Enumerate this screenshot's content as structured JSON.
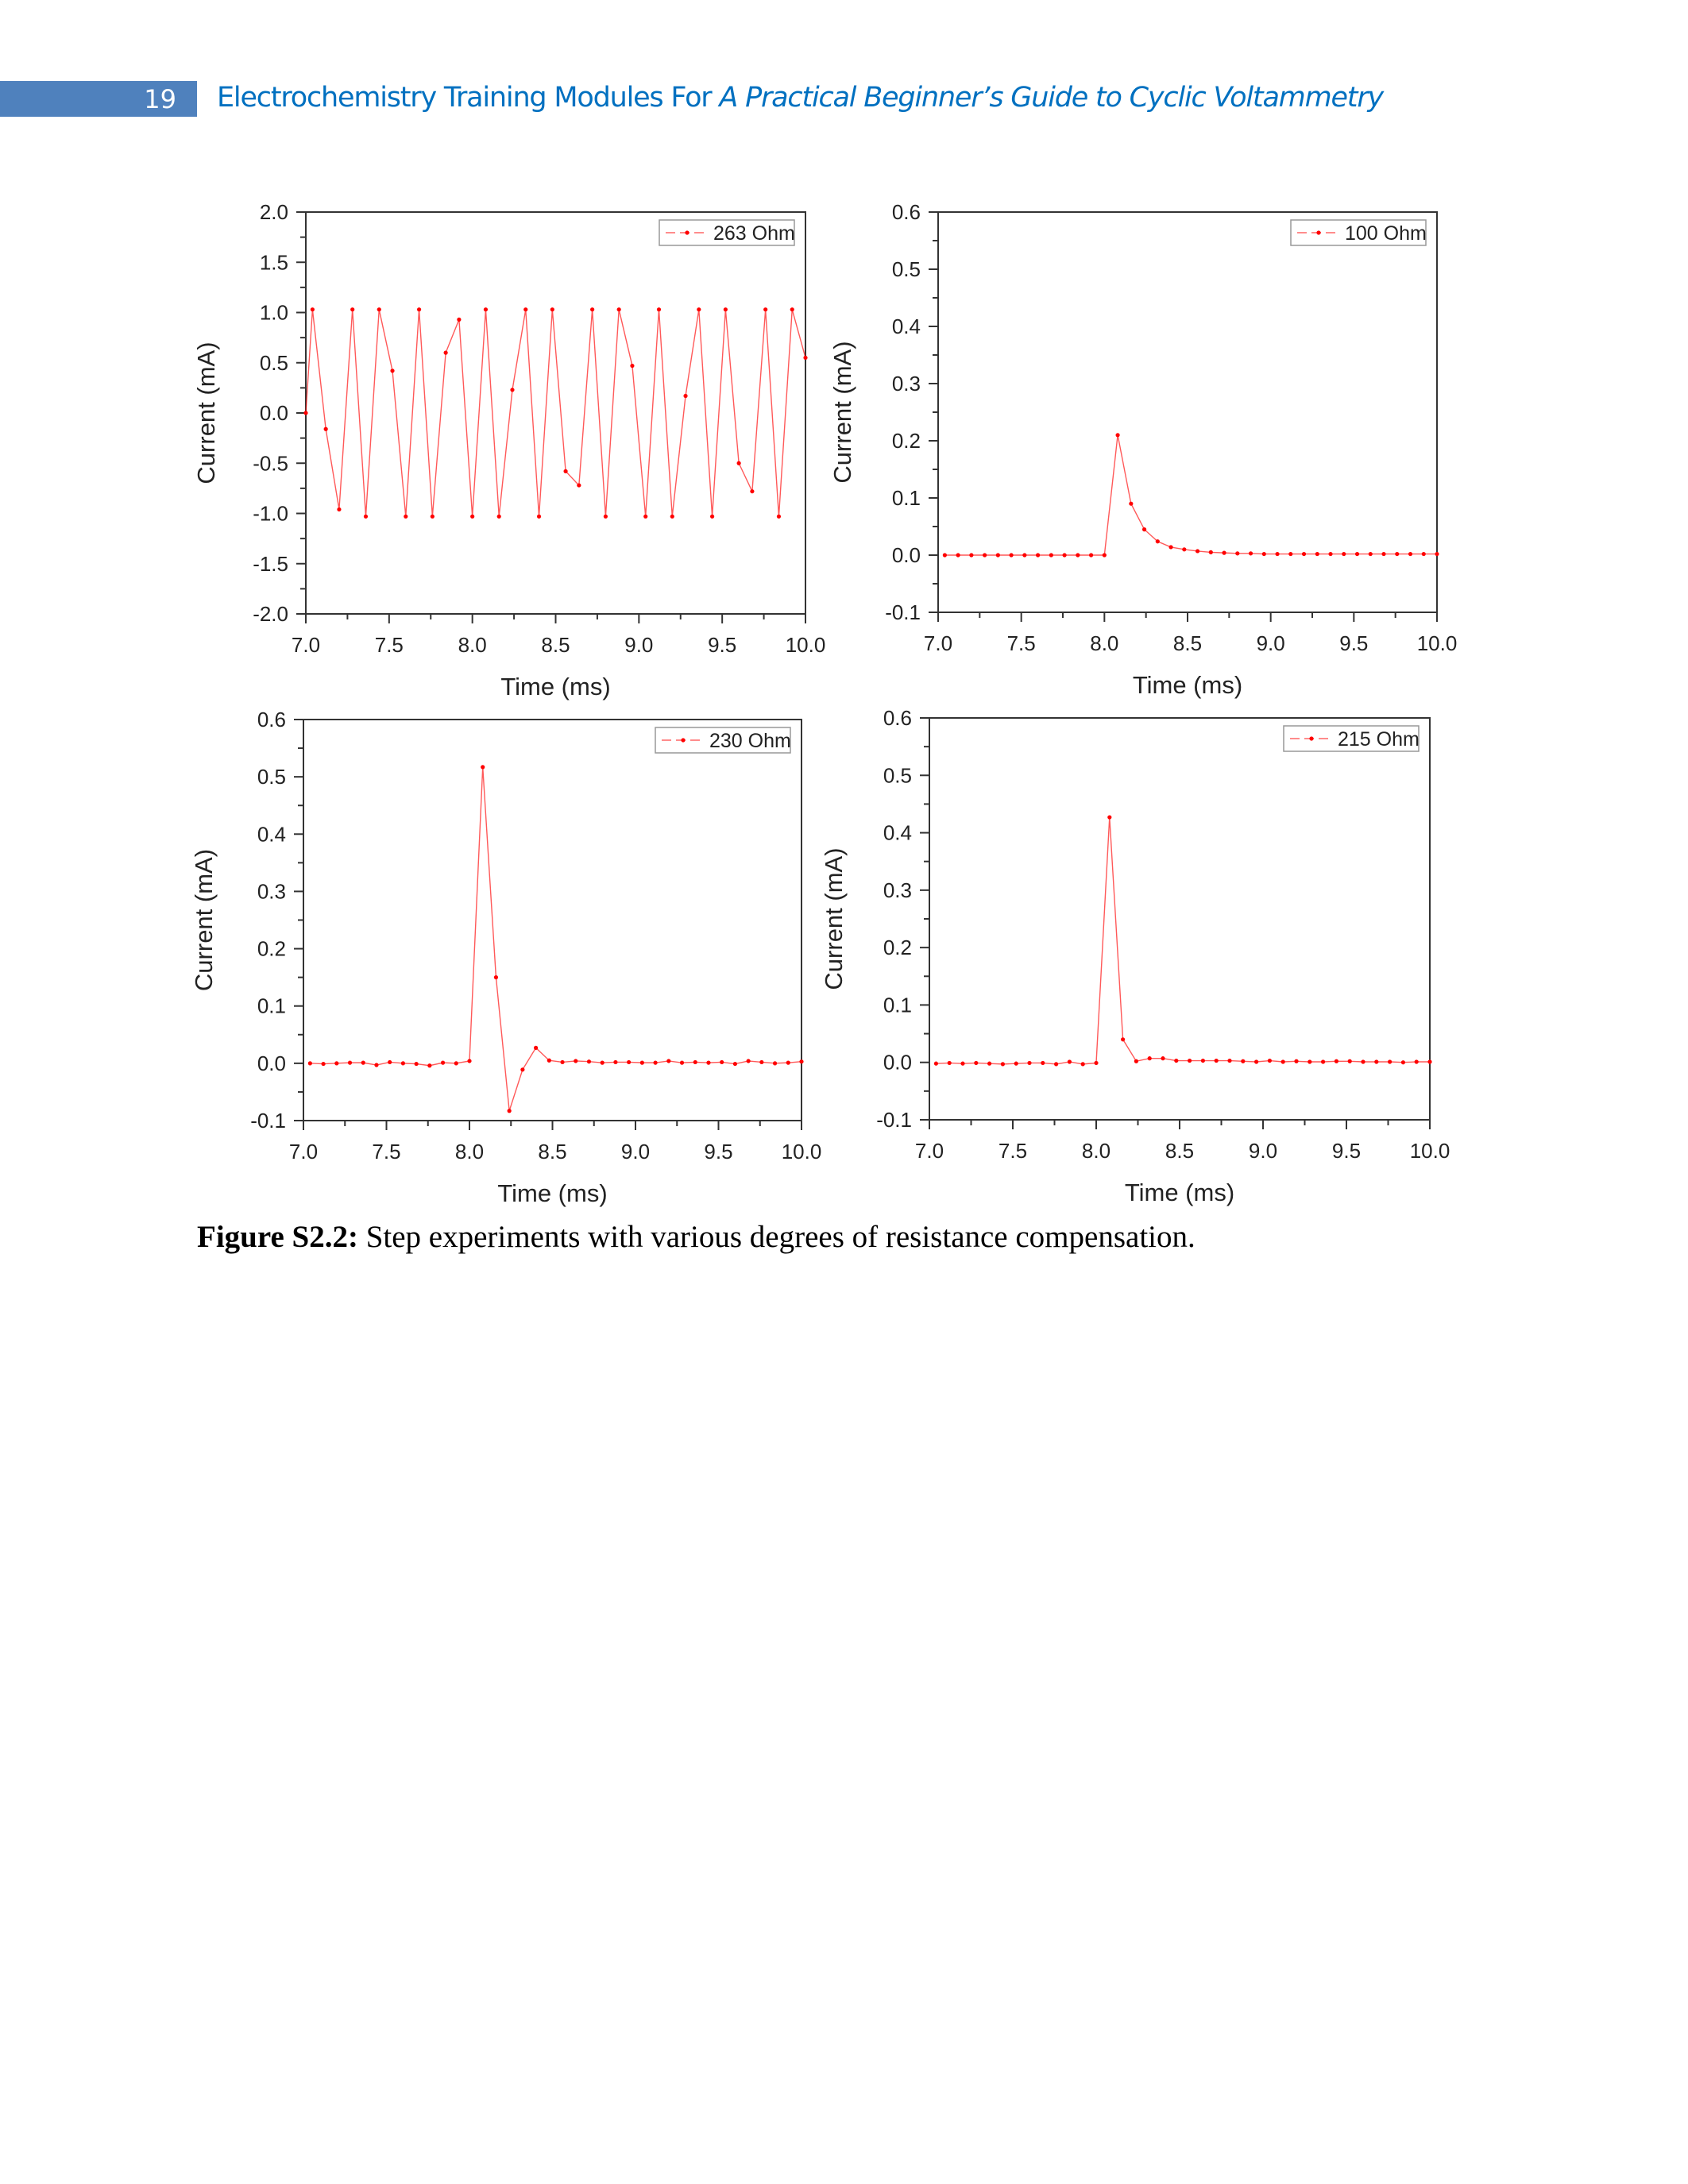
{
  "header": {
    "page_number": "19",
    "title_regular": "Electrochemistry Training Modules For ",
    "title_italic": "A Practical Beginner’s Guide to Cyclic Voltammetry"
  },
  "caption": {
    "label": "Figure S2.2:",
    "text": " Step experiments with various degrees of resistance compensation."
  },
  "colors": {
    "header_bar": "#4f81bd",
    "header_text": "#0070c0",
    "series": "#ff0000"
  },
  "chart_data": [
    {
      "type": "line",
      "legend": "263 Ohm",
      "legend_position": "top-right",
      "xlabel": "Time (ms)",
      "ylabel": "Current (mA)",
      "xlim": [
        7.0,
        10.0
      ],
      "ylim": [
        -2.0,
        2.0
      ],
      "xticks": [
        "7.0",
        "7.5",
        "8.0",
        "8.5",
        "9.0",
        "9.5",
        "10.0"
      ],
      "yticks": [
        "-2.0",
        "-1.5",
        "-1.0",
        "-0.5",
        "0.0",
        "0.5",
        "1.0",
        "1.5",
        "2.0"
      ],
      "x": [
        7.0,
        7.04,
        7.12,
        7.2,
        7.28,
        7.36,
        7.44,
        7.52,
        7.6,
        7.68,
        7.76,
        7.84,
        7.92,
        8.0,
        8.08,
        8.16,
        8.24,
        8.32,
        8.4,
        8.48,
        8.56,
        8.64,
        8.72,
        8.8,
        8.88,
        8.96,
        9.04,
        9.12,
        9.2,
        9.28,
        9.36,
        9.44,
        9.52,
        9.6,
        9.68,
        9.76,
        9.84,
        9.92,
        10.0
      ],
      "y": [
        0.0,
        1.03,
        -0.16,
        -0.96,
        1.03,
        -1.03,
        1.03,
        0.42,
        -1.03,
        1.03,
        -1.03,
        0.6,
        0.93,
        -1.03,
        1.03,
        -1.03,
        0.23,
        1.03,
        -1.03,
        1.03,
        -0.58,
        -0.72,
        1.03,
        -1.03,
        1.03,
        0.47,
        -1.03,
        1.03,
        -1.03,
        0.17,
        1.03,
        -1.03,
        1.03,
        -0.5,
        -0.78,
        1.03,
        -1.03,
        1.03,
        0.55
      ]
    },
    {
      "type": "line",
      "legend": "100 Ohm",
      "legend_position": "top-right",
      "xlabel": "Time (ms)",
      "ylabel": "Current (mA)",
      "xlim": [
        7.0,
        10.0
      ],
      "ylim": [
        -0.1,
        0.6
      ],
      "xticks": [
        "7.0",
        "7.5",
        "8.0",
        "8.5",
        "9.0",
        "9.5",
        "10.0"
      ],
      "yticks": [
        "-0.1",
        "0.0",
        "0.1",
        "0.2",
        "0.3",
        "0.4",
        "0.5",
        "0.6"
      ],
      "x": [
        7.04,
        7.12,
        7.2,
        7.28,
        7.36,
        7.44,
        7.52,
        7.6,
        7.68,
        7.76,
        7.84,
        7.92,
        8.0,
        8.08,
        8.16,
        8.24,
        8.32,
        8.4,
        8.48,
        8.56,
        8.64,
        8.72,
        8.8,
        8.88,
        8.96,
        9.04,
        9.12,
        9.2,
        9.28,
        9.36,
        9.44,
        9.52,
        9.6,
        9.68,
        9.76,
        9.84,
        9.92,
        10.0
      ],
      "y": [
        0,
        0,
        0,
        0,
        0,
        0,
        0,
        0,
        0,
        0,
        0,
        0,
        0,
        0.21,
        0.09,
        0.045,
        0.024,
        0.014,
        0.01,
        0.007,
        0.005,
        0.004,
        0.003,
        0.003,
        0.002,
        0.002,
        0.002,
        0.002,
        0.002,
        0.002,
        0.002,
        0.002,
        0.002,
        0.002,
        0.002,
        0.002,
        0.002,
        0.002
      ]
    },
    {
      "type": "line",
      "legend": "230 Ohm",
      "legend_position": "top-right",
      "xlabel": "Time (ms)",
      "ylabel": "Current (mA)",
      "xlim": [
        7.0,
        10.0
      ],
      "ylim": [
        -0.1,
        0.6
      ],
      "xticks": [
        "7.0",
        "7.5",
        "8.0",
        "8.5",
        "9.0",
        "9.5",
        "10.0"
      ],
      "yticks": [
        "-0.1",
        "0.0",
        "0.1",
        "0.2",
        "0.3",
        "0.4",
        "0.5",
        "0.6"
      ],
      "x": [
        7.04,
        7.12,
        7.2,
        7.28,
        7.36,
        7.44,
        7.52,
        7.6,
        7.68,
        7.76,
        7.84,
        7.92,
        8.0,
        8.08,
        8.16,
        8.24,
        8.32,
        8.4,
        8.48,
        8.56,
        8.64,
        8.72,
        8.8,
        8.88,
        8.96,
        9.04,
        9.12,
        9.2,
        9.28,
        9.36,
        9.44,
        9.52,
        9.6,
        9.68,
        9.76,
        9.84,
        9.92,
        10.0
      ],
      "y": [
        0,
        -0.001,
        0,
        0.001,
        0.001,
        -0.003,
        0.002,
        0,
        -0.001,
        -0.004,
        0.001,
        0,
        0.004,
        0.517,
        0.15,
        -0.083,
        -0.011,
        0.027,
        0.005,
        0.002,
        0.004,
        0.003,
        0.001,
        0.002,
        0.002,
        0.001,
        0.001,
        0.004,
        0.001,
        0.002,
        0.001,
        0.002,
        -0.001,
        0.004,
        0.002,
        0,
        0.001,
        0.003
      ]
    },
    {
      "type": "line",
      "legend": "215 Ohm",
      "legend_position": "top-right",
      "xlabel": "Time (ms)",
      "ylabel": "Current (mA)",
      "xlim": [
        7.0,
        10.0
      ],
      "ylim": [
        -0.1,
        0.6
      ],
      "xticks": [
        "7.0",
        "7.5",
        "8.0",
        "8.5",
        "9.0",
        "9.5",
        "10.0"
      ],
      "yticks": [
        "-0.1",
        "0.0",
        "0.1",
        "0.2",
        "0.3",
        "0.4",
        "0.5",
        "0.6"
      ],
      "x": [
        7.04,
        7.12,
        7.2,
        7.28,
        7.36,
        7.44,
        7.52,
        7.6,
        7.68,
        7.76,
        7.84,
        7.92,
        8.0,
        8.08,
        8.16,
        8.24,
        8.32,
        8.4,
        8.48,
        8.56,
        8.64,
        8.72,
        8.8,
        8.88,
        8.96,
        9.04,
        9.12,
        9.2,
        9.28,
        9.36,
        9.44,
        9.52,
        9.6,
        9.68,
        9.76,
        9.84,
        9.92,
        10.0
      ],
      "y": [
        -0.002,
        -0.001,
        -0.002,
        -0.001,
        -0.002,
        -0.003,
        -0.002,
        -0.001,
        -0.001,
        -0.003,
        0.001,
        -0.003,
        -0.001,
        0.427,
        0.04,
        0.002,
        0.007,
        0.007,
        0.003,
        0.003,
        0.003,
        0.003,
        0.003,
        0.002,
        0.001,
        0.003,
        0.001,
        0.002,
        0.001,
        0.001,
        0.002,
        0.002,
        0.001,
        0.001,
        0.001,
        0,
        0.001,
        0.001
      ]
    }
  ]
}
